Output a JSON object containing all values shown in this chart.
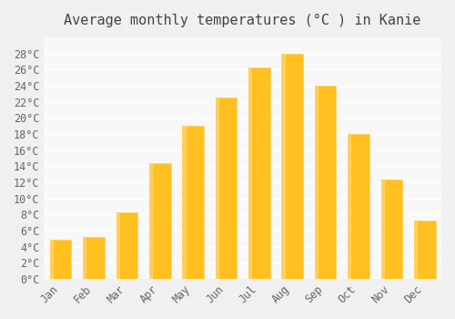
{
  "title": "Average monthly temperatures (°C ) in Kanie",
  "months": [
    "Jan",
    "Feb",
    "Mar",
    "Apr",
    "May",
    "Jun",
    "Jul",
    "Aug",
    "Sep",
    "Oct",
    "Nov",
    "Dec"
  ],
  "values": [
    4.8,
    5.2,
    8.2,
    14.4,
    19.0,
    22.5,
    26.3,
    27.9,
    24.0,
    18.0,
    12.3,
    7.2
  ],
  "bar_color_main": "#FFC020",
  "bar_color_edge": "#FFD060",
  "ylim": [
    0,
    30
  ],
  "yticks": [
    0,
    2,
    4,
    6,
    8,
    10,
    12,
    14,
    16,
    18,
    20,
    22,
    24,
    26,
    28
  ],
  "background_color": "#f0f0f0",
  "plot_bg_color": "#f8f8f8",
  "grid_color": "#ffffff",
  "title_fontsize": 11,
  "tick_fontsize": 8.5
}
